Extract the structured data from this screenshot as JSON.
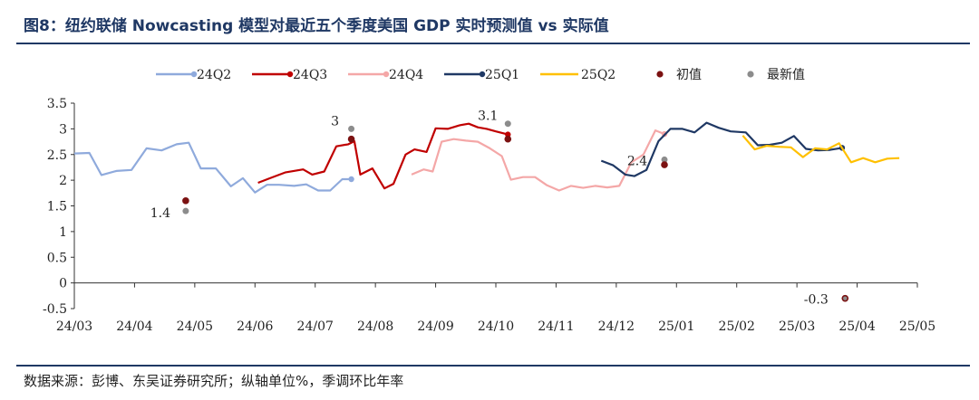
{
  "header": {
    "title": "图8：纽约联储 Nowcasting 模型对最近五个季度美国 GDP 实时预测值 vs 实际值"
  },
  "footer": {
    "source": "数据来源：彭博、东吴证券研究所；纵轴单位%，季调环比年率"
  },
  "chart_data": {
    "type": "line",
    "title": "",
    "xlabel": "",
    "ylabel": "",
    "ylim": [
      -0.5,
      3.5
    ],
    "yticks": [
      "3.5",
      "3",
      "2.5",
      "2",
      "1.5",
      "1",
      "0.5",
      "0",
      "-0.5"
    ],
    "x_categories": [
      "24/03",
      "24/04",
      "24/05",
      "24/06",
      "24/07",
      "24/08",
      "24/09",
      "24/10",
      "24/11",
      "24/12",
      "25/01",
      "25/02",
      "25/03",
      "25/04",
      "25/05"
    ],
    "grid": false,
    "legend_position": "top",
    "series": [
      {
        "name": "24Q2",
        "color": "#8faadc",
        "points": [
          [
            0.0,
            2.52
          ],
          [
            0.25,
            2.53
          ],
          [
            0.45,
            2.1
          ],
          [
            0.7,
            2.18
          ],
          [
            0.95,
            2.2
          ],
          [
            1.2,
            2.62
          ],
          [
            1.45,
            2.58
          ],
          [
            1.7,
            2.7
          ],
          [
            1.9,
            2.73
          ],
          [
            2.1,
            2.23
          ],
          [
            2.35,
            2.23
          ],
          [
            2.6,
            1.88
          ],
          [
            2.8,
            2.04
          ],
          [
            3.0,
            1.76
          ],
          [
            3.2,
            1.91
          ],
          [
            3.4,
            1.91
          ],
          [
            3.65,
            1.89
          ],
          [
            3.85,
            1.92
          ],
          [
            4.05,
            1.8
          ],
          [
            4.25,
            1.8
          ],
          [
            4.45,
            2.02
          ],
          [
            4.6,
            2.02
          ]
        ]
      },
      {
        "name": "24Q3",
        "color": "#c00000",
        "points": [
          [
            3.05,
            1.95
          ],
          [
            3.25,
            2.04
          ],
          [
            3.5,
            2.15
          ],
          [
            3.8,
            2.21
          ],
          [
            3.95,
            2.11
          ],
          [
            4.15,
            2.17
          ],
          [
            4.35,
            2.66
          ],
          [
            4.55,
            2.7
          ],
          [
            4.65,
            2.76
          ],
          [
            4.75,
            2.11
          ],
          [
            4.95,
            2.23
          ],
          [
            5.15,
            1.84
          ],
          [
            5.3,
            1.93
          ],
          [
            5.5,
            2.5
          ],
          [
            5.65,
            2.6
          ],
          [
            5.85,
            2.55
          ],
          [
            6.0,
            3.01
          ],
          [
            6.2,
            3.0
          ],
          [
            6.4,
            3.07
          ],
          [
            6.55,
            3.1
          ],
          [
            6.7,
            3.03
          ],
          [
            6.85,
            3.0
          ],
          [
            7.0,
            2.95
          ],
          [
            7.2,
            2.89
          ]
        ]
      },
      {
        "name": "24Q4",
        "color": "#f4a7a7",
        "points": [
          [
            5.6,
            2.11
          ],
          [
            5.8,
            2.21
          ],
          [
            5.95,
            2.17
          ],
          [
            6.1,
            2.75
          ],
          [
            6.3,
            2.8
          ],
          [
            6.5,
            2.77
          ],
          [
            6.7,
            2.75
          ],
          [
            6.9,
            2.62
          ],
          [
            7.1,
            2.47
          ],
          [
            7.25,
            2.01
          ],
          [
            7.45,
            2.06
          ],
          [
            7.65,
            2.06
          ],
          [
            7.85,
            1.9
          ],
          [
            8.05,
            1.8
          ],
          [
            8.25,
            1.89
          ],
          [
            8.45,
            1.85
          ],
          [
            8.65,
            1.89
          ],
          [
            8.85,
            1.86
          ],
          [
            9.05,
            1.89
          ],
          [
            9.25,
            2.35
          ],
          [
            9.45,
            2.5
          ],
          [
            9.65,
            2.97
          ],
          [
            9.8,
            2.9
          ]
        ]
      },
      {
        "name": "25Q1",
        "color": "#1f3864",
        "points": [
          [
            8.75,
            2.38
          ],
          [
            8.95,
            2.29
          ],
          [
            9.15,
            2.11
          ],
          [
            9.3,
            2.08
          ],
          [
            9.5,
            2.2
          ],
          [
            9.7,
            2.76
          ],
          [
            9.9,
            3.0
          ],
          [
            10.1,
            3.0
          ],
          [
            10.3,
            2.93
          ],
          [
            10.5,
            3.12
          ],
          [
            10.7,
            3.02
          ],
          [
            10.9,
            2.95
          ],
          [
            11.15,
            2.93
          ],
          [
            11.35,
            2.68
          ],
          [
            11.55,
            2.69
          ],
          [
            11.75,
            2.73
          ],
          [
            11.95,
            2.86
          ],
          [
            12.15,
            2.61
          ],
          [
            12.35,
            2.58
          ],
          [
            12.55,
            2.59
          ],
          [
            12.75,
            2.63
          ]
        ]
      },
      {
        "name": "25Q2",
        "color": "#ffc000",
        "points": [
          [
            11.1,
            2.87
          ],
          [
            11.3,
            2.6
          ],
          [
            11.5,
            2.67
          ],
          [
            11.7,
            2.65
          ],
          [
            11.9,
            2.64
          ],
          [
            12.1,
            2.45
          ],
          [
            12.3,
            2.62
          ],
          [
            12.5,
            2.6
          ],
          [
            12.7,
            2.72
          ],
          [
            12.9,
            2.35
          ],
          [
            13.1,
            2.43
          ],
          [
            13.3,
            2.35
          ],
          [
            13.5,
            2.42
          ],
          [
            13.7,
            2.43
          ]
        ]
      }
    ],
    "initial_values": {
      "name": "初值",
      "color": "#7b1111",
      "points": [
        [
          1.85,
          1.6
        ],
        [
          4.6,
          2.8
        ],
        [
          7.2,
          2.8
        ],
        [
          9.8,
          2.3
        ],
        [
          12.8,
          -0.3
        ]
      ]
    },
    "latest_values": {
      "name": "最新值",
      "color": "#8c8c8c",
      "points": [
        [
          1.85,
          1.4
        ],
        [
          4.6,
          3.0
        ],
        [
          7.2,
          3.1
        ],
        [
          9.8,
          2.4
        ],
        [
          12.8,
          -0.3
        ]
      ]
    },
    "annotations": [
      {
        "text": "1.4",
        "x": 1.85,
        "y": 1.4
      },
      {
        "text": "3",
        "x": 4.6,
        "y": 3.0
      },
      {
        "text": "3.1",
        "x": 7.2,
        "y": 3.1
      },
      {
        "text": "2.4",
        "x": 9.8,
        "y": 2.4
      },
      {
        "text": "-0.3",
        "x": 12.8,
        "y": -0.3
      }
    ]
  }
}
